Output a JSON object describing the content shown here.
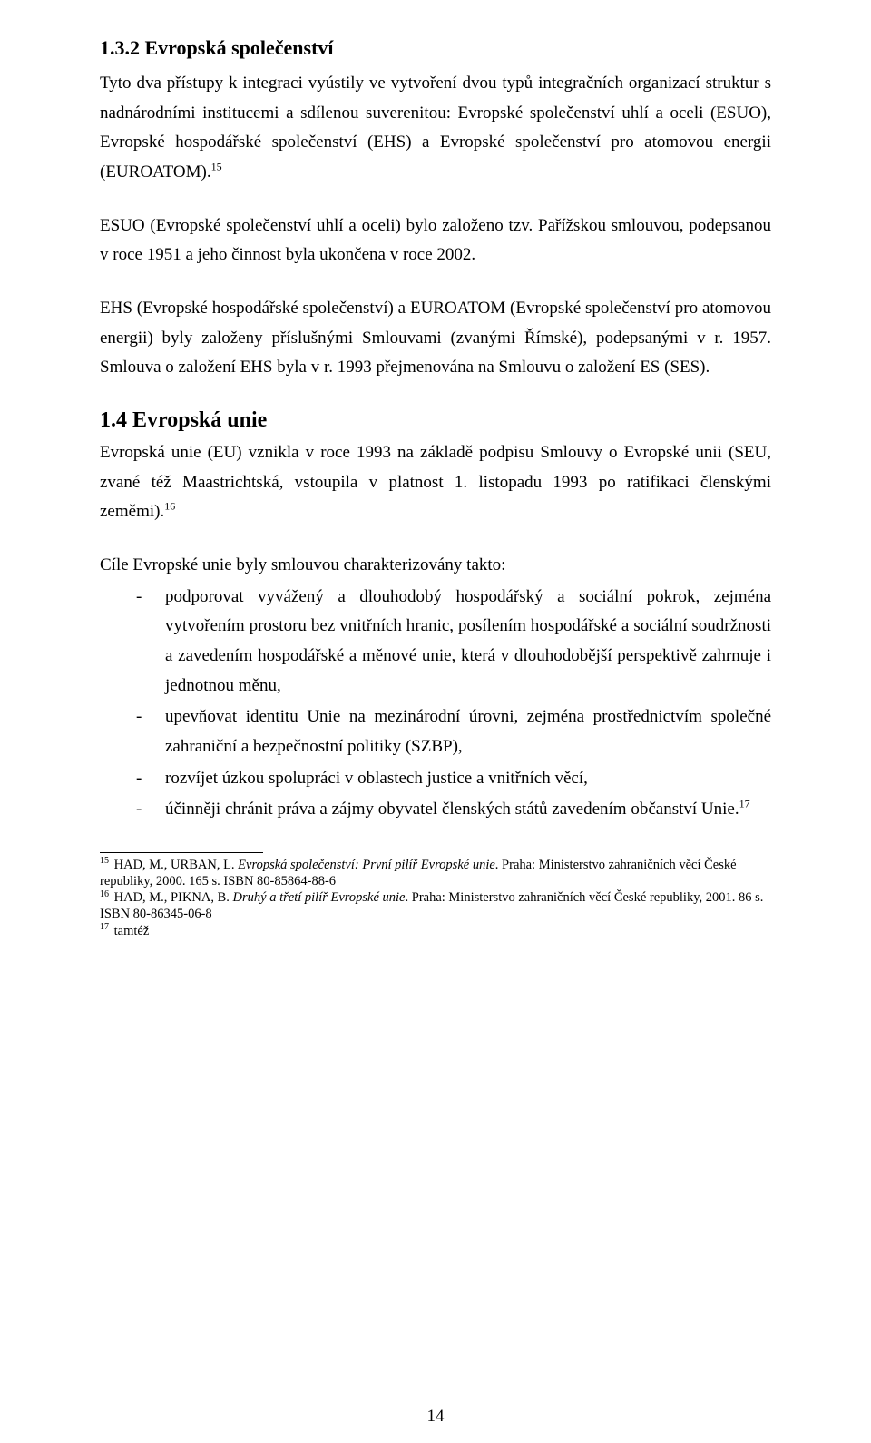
{
  "section132": {
    "heading": "1.3.2  Evropská společenství",
    "p1": "Tyto dva přístupy k integraci vyústily ve vytvoření dvou typů integračních organizací struktur s nadnárodními institucemi a sdílenou suverenitou: Evropské společenství uhlí a oceli (ESUO), Evropské hospodářské společenství (EHS) a Evropské společenství pro atomovou energii (EUROATOM).",
    "fn15": "15",
    "p2": "ESUO (Evropské společenství uhlí a oceli) bylo založeno tzv. Pařížskou smlouvou, podepsanou v roce 1951 a jeho činnost byla ukončena v roce 2002.",
    "p3": "EHS (Evropské hospodářské společenství) a EUROATOM (Evropské společenství pro atomovou energii) byly založeny příslušnými Smlouvami (zvanými Římské), podepsanými v r. 1957. Smlouva o založení EHS byla v r. 1993 přejmenována na Smlouvu o založení ES (SES)."
  },
  "section14": {
    "heading": "1.4  Evropská unie",
    "p1a": "Evropská unie (EU) vznikla v roce 1993 na základě podpisu Smlouvy o Evropské unii (SEU, zvané též Maastrichtská, vstoupila v platnost 1. listopadu 1993 po ratifikaci členskými zeměmi).",
    "fn16": "16",
    "listIntro": "Cíle Evropské unie byly smlouvou charakterizovány takto:",
    "li1": "podporovat vyvážený  a dlouhodobý hospodářský a sociální pokrok, zejména vytvořením prostoru bez vnitřních hranic, posílením hospodářské a sociální soudržnosti a zavedením hospodářské a měnové unie, která v dlouhodobější perspektivě zahrnuje i jednotnou měnu,",
    "li2": "upevňovat identitu Unie na mezinárodní úrovni, zejména prostřednictvím společné zahraniční a bezpečnostní politiky (SZBP),",
    "li3": "rozvíjet úzkou spolupráci v oblastech justice a vnitřních věcí,",
    "li4a": "účinněji chránit práva a zájmy obyvatel členských států zavedením občanství Unie.",
    "fn17": "17"
  },
  "footnotes": {
    "f15_num": "15",
    "f15_a": " HAD, M., URBAN, L. ",
    "f15_i": "Evropská společenství: První pilíř Evropské unie",
    "f15_b": ". Praha: Ministerstvo zahraničních věcí České republiky, 2000. 165 s. ISBN 80-85864-88-6",
    "f16_num": "16",
    "f16_a": " HAD, M., PIKNA, B. ",
    "f16_i": "Druhý a třetí pilíř Evropské unie",
    "f16_b": ". Praha: Ministerstvo zahraničních věcí České republiky, 2001. 86 s. ISBN 80-86345-06-8",
    "f17_num": "17",
    "f17_a": " tamtéž"
  },
  "pageNumber": "14"
}
